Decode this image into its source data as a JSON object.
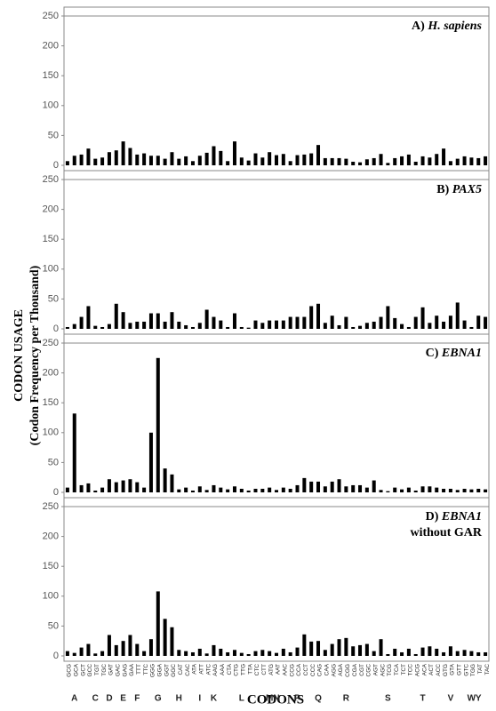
{
  "y_label": [
    "CODON USAGE",
    "(Codon Frequency per Thousand)"
  ],
  "x_label": "CODONS",
  "codons": [
    "GCG",
    "GCA",
    "GCT",
    "GCC",
    "TGT",
    "TGC",
    "GAT",
    "GAC",
    "GAG",
    "GAA",
    "TTT",
    "TTC",
    "GGG",
    "GGA",
    "GGT",
    "GGC",
    "CAT",
    "CAC",
    "ATA",
    "ATT",
    "ATC",
    "AAG",
    "AAA",
    "CTA",
    "CTG",
    "TTG",
    "TTA",
    "CTC",
    "CTT",
    "ATG",
    "AAT",
    "AAC",
    "CCG",
    "CCA",
    "CCT",
    "CCC",
    "CAG",
    "CAA",
    "AGG",
    "AGA",
    "CGG",
    "CGA",
    "CGT",
    "CGC",
    "AGT",
    "AGC",
    "TCG",
    "TCA",
    "TCT",
    "TCC",
    "ACG",
    "ACA",
    "ACT",
    "ACC",
    "GTG",
    "GTA",
    "GTT",
    "GTC",
    "TGG",
    "TAT",
    "TAC"
  ],
  "amino_acids": [
    null,
    "A",
    null,
    null,
    "C",
    null,
    "D",
    null,
    "E",
    null,
    "F",
    null,
    null,
    "G",
    null,
    null,
    "H",
    null,
    null,
    "I",
    null,
    "K",
    null,
    null,
    null,
    "L",
    null,
    null,
    null,
    "M",
    "N",
    null,
    null,
    "P",
    null,
    null,
    "Q",
    null,
    null,
    null,
    "R",
    null,
    null,
    null,
    null,
    null,
    "S",
    null,
    null,
    null,
    null,
    "T",
    null,
    null,
    null,
    "V",
    null,
    null,
    "W",
    "Y",
    null
  ],
  "chart_data": [
    {
      "type": "bar",
      "label": "A)",
      "name": "H. sapiens",
      "color": "#000000",
      "ylim": [
        0,
        250
      ],
      "yticks": [
        0,
        50,
        100,
        150,
        200,
        250
      ],
      "values": [
        7,
        16,
        18,
        28,
        11,
        13,
        22,
        25,
        40,
        29,
        18,
        20,
        16,
        16,
        11,
        22,
        11,
        15,
        7,
        16,
        21,
        32,
        24,
        7,
        40,
        13,
        8,
        20,
        13,
        22,
        17,
        19,
        7,
        17,
        18,
        20,
        34,
        12,
        12,
        12,
        11,
        6,
        5,
        10,
        12,
        19,
        4,
        12,
        15,
        18,
        6,
        15,
        13,
        19,
        28,
        7,
        11,
        15,
        13,
        12,
        15
      ]
    },
    {
      "type": "bar",
      "label": "B)",
      "name": "PAX5",
      "color": "#000000",
      "ylim": [
        0,
        250
      ],
      "yticks": [
        0,
        50,
        100,
        150,
        200,
        250
      ],
      "values": [
        3,
        8,
        20,
        38,
        5,
        3,
        8,
        42,
        28,
        10,
        12,
        12,
        26,
        26,
        12,
        28,
        12,
        6,
        3,
        10,
        32,
        20,
        14,
        3,
        26,
        3,
        2,
        14,
        10,
        14,
        14,
        14,
        20,
        20,
        20,
        38,
        42,
        10,
        22,
        6,
        20,
        3,
        5,
        10,
        12,
        20,
        38,
        18,
        8,
        3,
        20,
        36,
        10,
        22,
        12,
        22,
        44,
        14,
        3,
        22,
        20
      ]
    },
    {
      "type": "bar",
      "label": "C)",
      "name": "EBNA1",
      "color": "#000000",
      "ylim": [
        0,
        250
      ],
      "yticks": [
        0,
        50,
        100,
        150,
        200,
        250
      ],
      "values": [
        8,
        132,
        12,
        15,
        3,
        8,
        22,
        17,
        20,
        22,
        17,
        8,
        100,
        225,
        40,
        30,
        5,
        8,
        3,
        10,
        4,
        12,
        8,
        5,
        10,
        6,
        3,
        6,
        6,
        8,
        4,
        8,
        6,
        12,
        24,
        18,
        18,
        10,
        18,
        22,
        10,
        12,
        12,
        8,
        20,
        4,
        2,
        8,
        5,
        8,
        3,
        10,
        10,
        8,
        6,
        6,
        4,
        6,
        5,
        6,
        5
      ]
    },
    {
      "type": "bar",
      "label": "D)",
      "name": "EBNA1",
      "subtitle": "without GAR",
      "color": "#000000",
      "ylim": [
        0,
        250
      ],
      "yticks": [
        0,
        50,
        100,
        150,
        200,
        250
      ],
      "values": [
        8,
        5,
        14,
        20,
        4,
        8,
        35,
        18,
        25,
        35,
        20,
        8,
        28,
        108,
        62,
        48,
        10,
        8,
        6,
        12,
        4,
        18,
        12,
        6,
        10,
        5,
        3,
        8,
        10,
        8,
        5,
        12,
        6,
        14,
        36,
        24,
        25,
        10,
        20,
        28,
        30,
        16,
        18,
        20,
        8,
        28,
        3,
        12,
        6,
        12,
        3,
        14,
        16,
        12,
        6,
        16,
        8,
        10,
        8,
        6,
        6
      ]
    }
  ]
}
